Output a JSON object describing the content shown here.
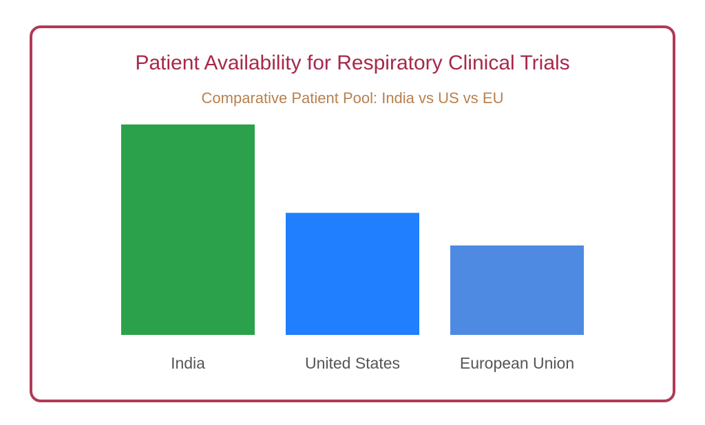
{
  "chart_data": {
    "type": "bar",
    "title": "Patient Availability for Respiratory Clinical Trials",
    "subtitle": "Comparative Patient Pool: India vs US vs EU",
    "categories": [
      "India",
      "United States",
      "European Union"
    ],
    "values": [
      100,
      58,
      42.5
    ],
    "colors": [
      "#2ca14b",
      "#1f7ffe",
      "#4f8ae2"
    ],
    "ylim": [
      0,
      100
    ],
    "grid": false,
    "legend": "none"
  },
  "colors": {
    "border": "#b03a55",
    "title": "#a6284a",
    "subtitle": "#b8804e"
  }
}
